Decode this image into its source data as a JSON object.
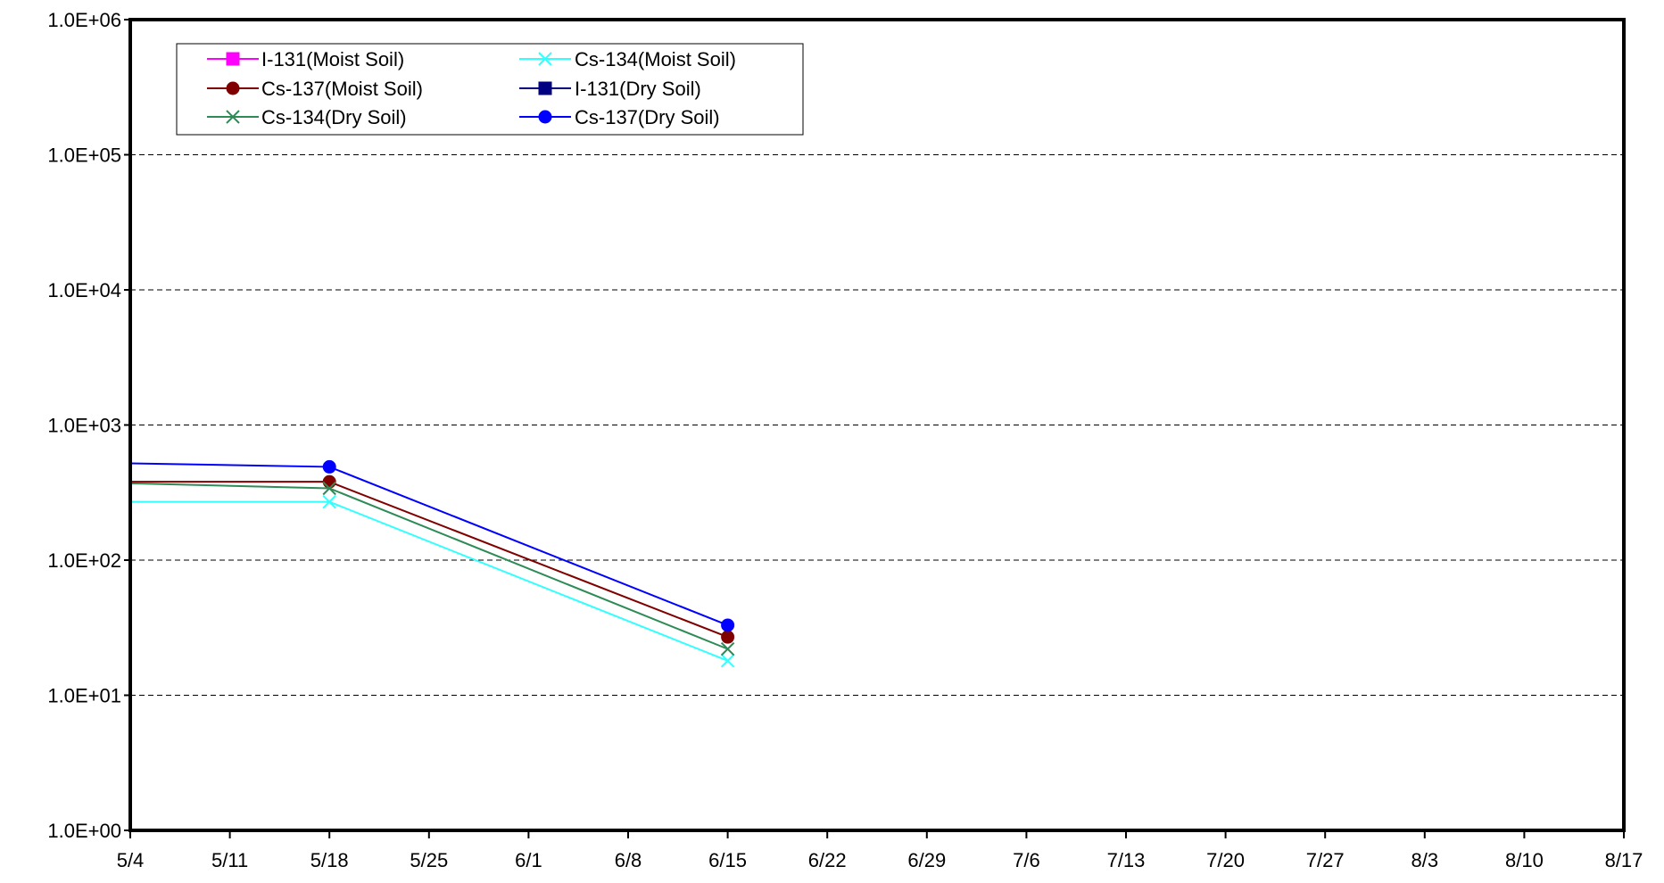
{
  "chart_data": {
    "type": "line",
    "title": "",
    "xlabel": "",
    "ylabel": "",
    "y_scale": "log",
    "ylim": [
      1,
      1000000
    ],
    "y_ticks": [
      {
        "value": 1,
        "label": "1.0E+00"
      },
      {
        "value": 10,
        "label": "1.0E+01"
      },
      {
        "value": 100,
        "label": "1.0E+02"
      },
      {
        "value": 1000,
        "label": "1.0E+03"
      },
      {
        "value": 10000,
        "label": "1.0E+04"
      },
      {
        "value": 100000,
        "label": "1.0E+05"
      },
      {
        "value": 1000000,
        "label": "1.0E+06"
      }
    ],
    "x_ticks": [
      "5/4",
      "5/11",
      "5/18",
      "5/25",
      "6/1",
      "6/8",
      "6/15",
      "6/22",
      "6/29",
      "7/6",
      "7/13",
      "7/20",
      "7/27",
      "8/3",
      "8/10",
      "8/17"
    ],
    "xlim": [
      "5/4",
      "8/17"
    ],
    "grid": "horizontal dashed",
    "legend_position": "top-left",
    "series": [
      {
        "name": "I-131(Moist Soil)",
        "color": "#ff00ff",
        "marker": "square",
        "x": [],
        "values": []
      },
      {
        "name": "Cs-134(Moist Soil)",
        "color": "#33ffff",
        "marker": "x",
        "x": [
          "5/4",
          "5/18",
          "6/15"
        ],
        "values": [
          270,
          270,
          18
        ]
      },
      {
        "name": "Cs-137(Moist Soil)",
        "color": "#800000",
        "marker": "circle",
        "x": [
          "5/4",
          "5/18",
          "6/15"
        ],
        "values": [
          380,
          380,
          27
        ]
      },
      {
        "name": "I-131(Dry Soil)",
        "color": "#000080",
        "marker": "square",
        "x": [],
        "values": []
      },
      {
        "name": "Cs-134(Dry Soil)",
        "color": "#2e8b57",
        "marker": "x",
        "x": [
          "5/4",
          "5/18",
          "6/15"
        ],
        "values": [
          370,
          340,
          22
        ]
      },
      {
        "name": "Cs-137(Dry Soil)",
        "color": "#0000ff",
        "marker": "circle",
        "x": [
          "5/4",
          "5/18",
          "6/15"
        ],
        "values": [
          520,
          490,
          33
        ]
      }
    ]
  }
}
